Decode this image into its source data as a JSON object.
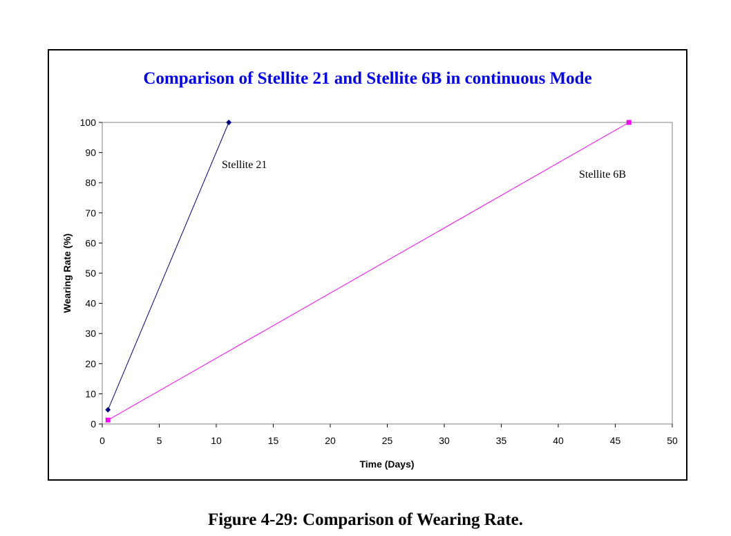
{
  "caption": "Figure 4-29: Comparison of Wearing Rate.",
  "chart_data": {
    "type": "line",
    "title": "Comparison of Stellite 21 and Stellite 6B in continuous Mode",
    "xlabel": "Time (Days)",
    "ylabel": "Wearing Rate (%)",
    "xlim": [
      0,
      50
    ],
    "ylim": [
      0,
      100
    ],
    "xticks": [
      0,
      5,
      10,
      15,
      20,
      25,
      30,
      35,
      40,
      45,
      50
    ],
    "yticks": [
      0,
      10,
      20,
      30,
      40,
      50,
      60,
      70,
      80,
      90,
      100
    ],
    "grid": false,
    "legend": "none",
    "title_color": "#0000ff",
    "series": [
      {
        "name": "Stellite 21",
        "color": "#000080",
        "marker": "diamond",
        "points": [
          {
            "x": 0.5,
            "y": 4.7
          },
          {
            "x": 11.1,
            "y": 100
          }
        ]
      },
      {
        "name": "Stellite 6B",
        "color": "#ff00ff",
        "marker": "square",
        "points": [
          {
            "x": 0.5,
            "y": 1.3
          },
          {
            "x": 46.2,
            "y": 100
          }
        ]
      }
    ]
  }
}
